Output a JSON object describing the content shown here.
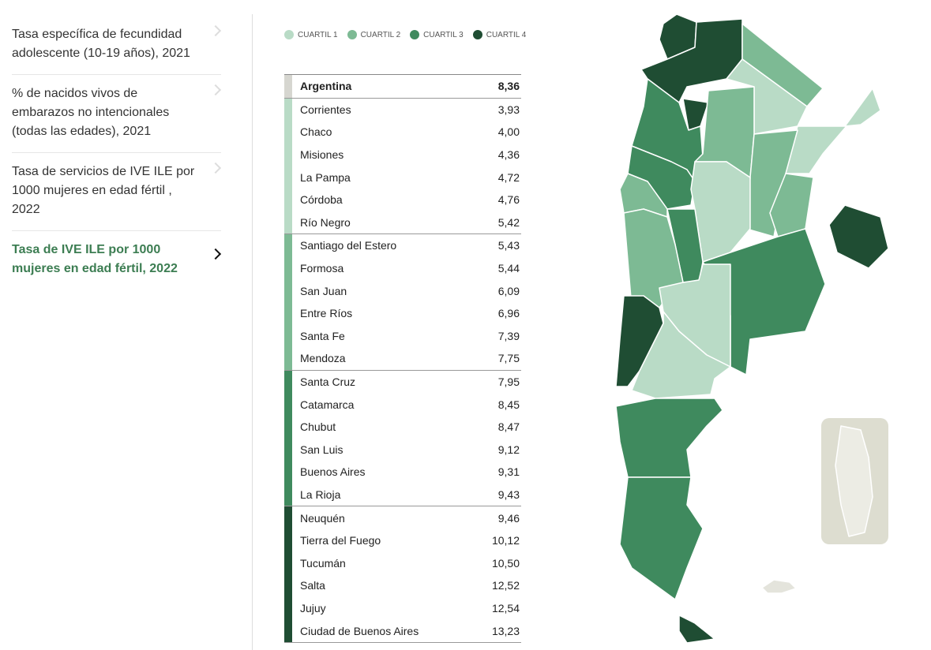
{
  "menu": [
    {
      "text": "Tasa específica de fecundidad adolescente (10-19 años), 2021",
      "active": false
    },
    {
      "text": "% de nacidos vivos de embarazos no intencionales (todas las edades), 2021",
      "active": false
    },
    {
      "text": "Tasa de servicios de IVE ILE por 1000 mujeres en edad fértil , 2022",
      "active": false
    },
    {
      "text": "Tasa de IVE ILE por 1000 mujeres en edad fértil, 2022",
      "active": true
    }
  ],
  "legend": [
    {
      "label": "CUARTIL 1",
      "color": "#b9dbc6"
    },
    {
      "label": "CUARTIL 2",
      "color": "#7dba94"
    },
    {
      "label": "CUARTIL 3",
      "color": "#3f8a5e"
    },
    {
      "label": "CUARTIL 4",
      "color": "#1f4d33"
    }
  ],
  "table": {
    "total": {
      "name": "Argentina",
      "value": "8,36",
      "color": "#d6d6d0"
    },
    "groups": [
      {
        "rows": [
          {
            "name": "Corrientes",
            "value": "3,93"
          },
          {
            "name": "Chaco",
            "value": "4,00"
          },
          {
            "name": "Misiones",
            "value": "4,36"
          },
          {
            "name": "La Pampa",
            "value": "4,72"
          },
          {
            "name": "Córdoba",
            "value": "4,76"
          },
          {
            "name": "Río Negro",
            "value": "5,42"
          }
        ]
      },
      {
        "rows": [
          {
            "name": "Santiago del Estero",
            "value": "5,43"
          },
          {
            "name": "Formosa",
            "value": "5,44"
          },
          {
            "name": "San Juan",
            "value": "6,09"
          },
          {
            "name": "Entre Ríos",
            "value": "6,96"
          },
          {
            "name": "Santa Fe",
            "value": "7,39"
          },
          {
            "name": "Mendoza",
            "value": "7,75"
          }
        ]
      },
      {
        "rows": [
          {
            "name": "Santa Cruz",
            "value": "7,95"
          },
          {
            "name": "Catamarca",
            "value": "8,45"
          },
          {
            "name": "Chubut",
            "value": "8,47"
          },
          {
            "name": "San Luis",
            "value": "9,12"
          },
          {
            "name": "Buenos Aires",
            "value": "9,31"
          },
          {
            "name": "La Rioja",
            "value": "9,43"
          }
        ]
      },
      {
        "rows": [
          {
            "name": "Neuquén",
            "value": "9,46"
          },
          {
            "name": "Tierra del Fuego",
            "value": "10,12"
          },
          {
            "name": "Tucumán",
            "value": "10,50"
          },
          {
            "name": "Salta",
            "value": "12,52"
          },
          {
            "name": "Jujuy",
            "value": "12,54"
          },
          {
            "name": "Ciudad de Buenos Aires",
            "value": "13,23"
          }
        ]
      }
    ]
  }
}
